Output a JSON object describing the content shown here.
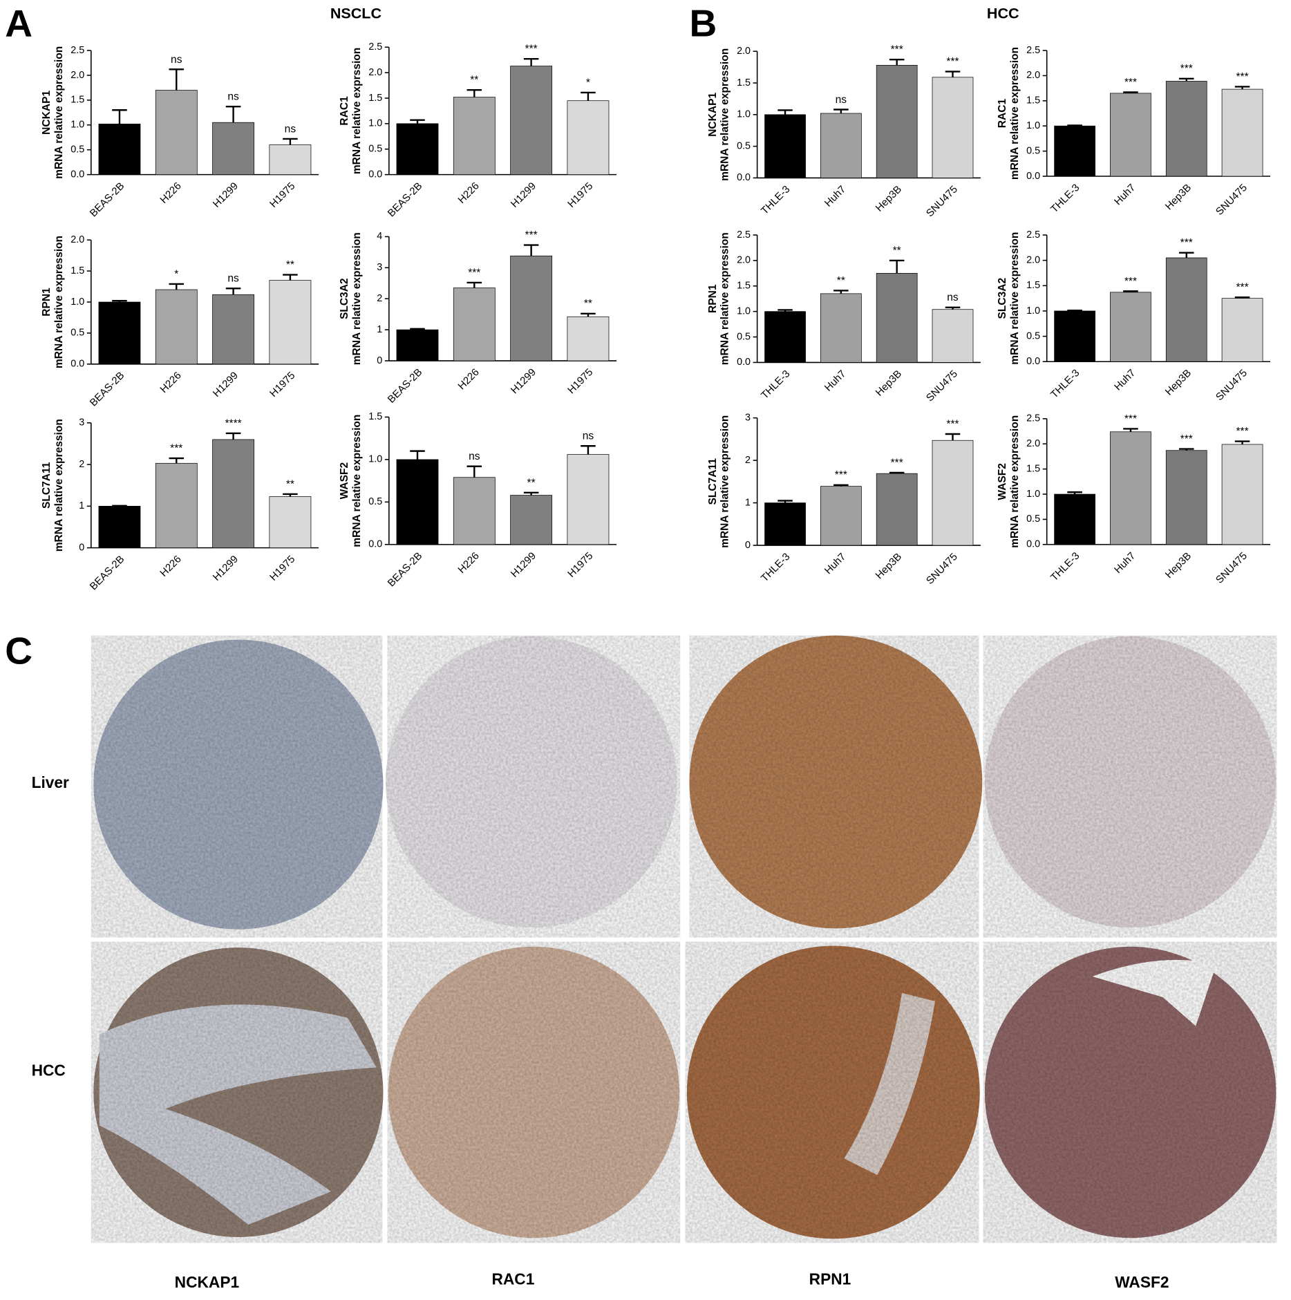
{
  "panels": [
    {
      "label": "A",
      "title": "NSCLC"
    },
    {
      "label": "B",
      "title": "HCC"
    },
    {
      "label": "C"
    }
  ],
  "ihc": {
    "rows": [
      "Liver",
      "HCC"
    ],
    "columns": [
      "NCKAP1",
      "RAC1",
      "RPN1",
      "WASF2"
    ]
  },
  "chart_data": [
    {
      "type": "bar",
      "ylabel": [
        "NCKAP1",
        "mRNA relative expression"
      ],
      "categories": [
        "BEAS-2B",
        "H226",
        "H1299",
        "H1975"
      ],
      "values": [
        1.02,
        1.7,
        1.05,
        0.6
      ],
      "errors": [
        0.28,
        0.42,
        0.32,
        0.12
      ],
      "annotations": [
        null,
        "ns",
        "ns",
        "ns"
      ],
      "colors": [
        "#000000",
        "#a6a6a6",
        "#808080",
        "#d9d9d9"
      ],
      "ylim": [
        0,
        2.5
      ],
      "yticks": [
        {
          "value": 0,
          "label": "0.0"
        },
        0.5,
        {
          "value": 1,
          "label": "1.0"
        },
        1.5,
        {
          "value": 2,
          "label": "2.0"
        },
        2.5
      ]
    },
    {
      "type": "bar",
      "ylabel": [
        "RAC1",
        "mRNA relative exprssion"
      ],
      "categories": [
        "BEAS-2B",
        "H226",
        "H1299",
        "H1975"
      ],
      "values": [
        1.0,
        1.52,
        2.13,
        1.45
      ],
      "errors": [
        0.07,
        0.14,
        0.14,
        0.16
      ],
      "annotations": [
        null,
        "**",
        "***",
        "*"
      ],
      "colors": [
        "#000000",
        "#a6a6a6",
        "#808080",
        "#d9d9d9"
      ],
      "ylim": [
        0,
        2.5
      ],
      "yticks": [
        {
          "value": 0,
          "label": "0.0"
        },
        0.5,
        {
          "value": 1,
          "label": "1.0"
        },
        1.5,
        {
          "value": 2,
          "label": "2.0"
        },
        2.5
      ]
    },
    {
      "type": "bar",
      "ylabel": [
        "RPN1",
        "mRNA relative expression"
      ],
      "categories": [
        "BEAS-2B",
        "H226",
        "H1299",
        "H1975"
      ],
      "values": [
        1.0,
        1.2,
        1.12,
        1.35
      ],
      "errors": [
        0.02,
        0.09,
        0.1,
        0.09
      ],
      "annotations": [
        null,
        "*",
        "ns",
        "**"
      ],
      "colors": [
        "#000000",
        "#a6a6a6",
        "#808080",
        "#d9d9d9"
      ],
      "ylim": [
        0,
        2
      ],
      "yticks": [
        {
          "value": 0,
          "label": "0.0"
        },
        0.5,
        {
          "value": 1,
          "label": "1.0"
        },
        1.5,
        {
          "value": 2,
          "label": "2.0"
        }
      ]
    },
    {
      "type": "bar",
      "ylabel": [
        "SLC3A2",
        "mRNA relative expression"
      ],
      "categories": [
        "BEAS-2B",
        "H226",
        "H1299",
        "H1975"
      ],
      "values": [
        1.0,
        2.35,
        3.38,
        1.42
      ],
      "errors": [
        0.03,
        0.17,
        0.35,
        0.1
      ],
      "annotations": [
        null,
        "***",
        "***",
        "**"
      ],
      "colors": [
        "#000000",
        "#a6a6a6",
        "#808080",
        "#d9d9d9"
      ],
      "ylim": [
        0,
        4
      ],
      "yticks": [
        0,
        1,
        2,
        3,
        4
      ]
    },
    {
      "type": "bar",
      "ylabel": [
        "SLC7A11",
        "mRNA relative expression"
      ],
      "categories": [
        "BEAS-2B",
        "H226",
        "H1299",
        "H1975"
      ],
      "values": [
        1.0,
        2.03,
        2.6,
        1.23
      ],
      "errors": [
        0.01,
        0.12,
        0.15,
        0.06
      ],
      "annotations": [
        null,
        "***",
        "****",
        "**"
      ],
      "colors": [
        "#000000",
        "#a6a6a6",
        "#808080",
        "#d9d9d9"
      ],
      "ylim": [
        0,
        3
      ],
      "yticks": [
        0,
        1,
        2,
        3
      ]
    },
    {
      "type": "bar",
      "ylabel": [
        "WASF2",
        "mRNA relative expression"
      ],
      "categories": [
        "BEAS-2B",
        "H226",
        "H1299",
        "H1975"
      ],
      "values": [
        1.0,
        0.79,
        0.58,
        1.06
      ],
      "errors": [
        0.1,
        0.13,
        0.03,
        0.1
      ],
      "annotations": [
        null,
        "ns",
        "**",
        "ns"
      ],
      "colors": [
        "#000000",
        "#a6a6a6",
        "#808080",
        "#d9d9d9"
      ],
      "ylim": [
        0,
        1.5
      ],
      "yticks": [
        {
          "value": 0,
          "label": "0.0"
        },
        0.5,
        {
          "value": 1,
          "label": "1.0"
        },
        1.5
      ]
    },
    {
      "type": "bar",
      "ylabel": [
        "NCKAP1",
        "mRNA relative expression"
      ],
      "categories": [
        "THLE-3",
        "Huh7",
        "Hep3B",
        "SNU475"
      ],
      "values": [
        1.0,
        1.02,
        1.78,
        1.59
      ],
      "errors": [
        0.07,
        0.06,
        0.09,
        0.09
      ],
      "annotations": [
        null,
        "ns",
        "***",
        "***"
      ],
      "colors": [
        "#000000",
        "#a0a0a0",
        "#7a7a7a",
        "#d4d4d4"
      ],
      "ylim": [
        0,
        2
      ],
      "yticks": [
        {
          "value": 0,
          "label": "0.0"
        },
        0.5,
        {
          "value": 1,
          "label": "1.0"
        },
        1.5,
        {
          "value": 2,
          "label": "2.0"
        }
      ]
    },
    {
      "type": "bar",
      "ylabel": [
        "RAC1",
        "mRNA relative expression"
      ],
      "categories": [
        "THLE-3",
        "Huh7",
        "Hep3B",
        "SNU475"
      ],
      "values": [
        1.0,
        1.65,
        1.89,
        1.73
      ],
      "errors": [
        0.01,
        0.02,
        0.05,
        0.05
      ],
      "annotations": [
        null,
        "***",
        "***",
        "***"
      ],
      "colors": [
        "#000000",
        "#a0a0a0",
        "#7a7a7a",
        "#d4d4d4"
      ],
      "ylim": [
        0,
        2.5
      ],
      "yticks": [
        {
          "value": 0,
          "label": "0.0"
        },
        0.5,
        {
          "value": 1,
          "label": "1.0"
        },
        1.5,
        {
          "value": 2,
          "label": "2.0"
        },
        2.5
      ]
    },
    {
      "type": "bar",
      "ylabel": [
        "RPN1",
        "mRNA relative expression"
      ],
      "categories": [
        "THLE-3",
        "Huh7",
        "Hep3B",
        "SNU475"
      ],
      "values": [
        1.0,
        1.35,
        1.75,
        1.04
      ],
      "errors": [
        0.03,
        0.06,
        0.25,
        0.04
      ],
      "annotations": [
        null,
        "**",
        "**",
        "ns"
      ],
      "colors": [
        "#000000",
        "#a0a0a0",
        "#7a7a7a",
        "#d4d4d4"
      ],
      "ylim": [
        0,
        2.5
      ],
      "yticks": [
        {
          "value": 0,
          "label": "0.0"
        },
        0.5,
        {
          "value": 1,
          "label": "1.0"
        },
        1.5,
        {
          "value": 2,
          "label": "2.0"
        },
        2.5
      ]
    },
    {
      "type": "bar",
      "ylabel": [
        "SLC3A2",
        "mRNA relative expression"
      ],
      "categories": [
        "THLE-3",
        "Huh7",
        "Hep3B",
        "SNU475"
      ],
      "values": [
        1.0,
        1.37,
        2.05,
        1.25
      ],
      "errors": [
        0.01,
        0.02,
        0.1,
        0.02
      ],
      "annotations": [
        null,
        "***",
        "***",
        "***"
      ],
      "colors": [
        "#000000",
        "#a0a0a0",
        "#7a7a7a",
        "#d4d4d4"
      ],
      "ylim": [
        0,
        2.5
      ],
      "yticks": [
        {
          "value": 0,
          "label": "0.0"
        },
        0.5,
        {
          "value": 1,
          "label": "1.0"
        },
        1.5,
        {
          "value": 2,
          "label": "2.0"
        },
        2.5
      ]
    },
    {
      "type": "bar",
      "ylabel": [
        "SLC7A11",
        "mRNA relative expression"
      ],
      "categories": [
        "THLE-3",
        "Huh7",
        "Hep3B",
        "SNU475"
      ],
      "values": [
        1.0,
        1.39,
        1.69,
        2.47
      ],
      "errors": [
        0.05,
        0.03,
        0.02,
        0.15
      ],
      "annotations": [
        null,
        "***",
        "***",
        "***"
      ],
      "colors": [
        "#000000",
        "#a0a0a0",
        "#7a7a7a",
        "#d4d4d4"
      ],
      "ylim": [
        0,
        3
      ],
      "yticks": [
        0,
        1,
        2,
        3
      ]
    },
    {
      "type": "bar",
      "ylabel": [
        "WASF2",
        "mRNA relative expression"
      ],
      "categories": [
        "THLE-3",
        "Huh7",
        "Hep3B",
        "SNU475"
      ],
      "values": [
        1.0,
        2.24,
        1.87,
        1.99
      ],
      "errors": [
        0.04,
        0.06,
        0.03,
        0.06
      ],
      "annotations": [
        null,
        "***",
        "***",
        "***"
      ],
      "colors": [
        "#000000",
        "#a0a0a0",
        "#7a7a7a",
        "#d4d4d4"
      ],
      "ylim": [
        0,
        2.5
      ],
      "yticks": [
        {
          "value": 0,
          "label": "0.0"
        },
        0.5,
        {
          "value": 1,
          "label": "1.0"
        },
        1.5,
        {
          "value": 2,
          "label": "2.0"
        },
        2.5
      ]
    }
  ]
}
